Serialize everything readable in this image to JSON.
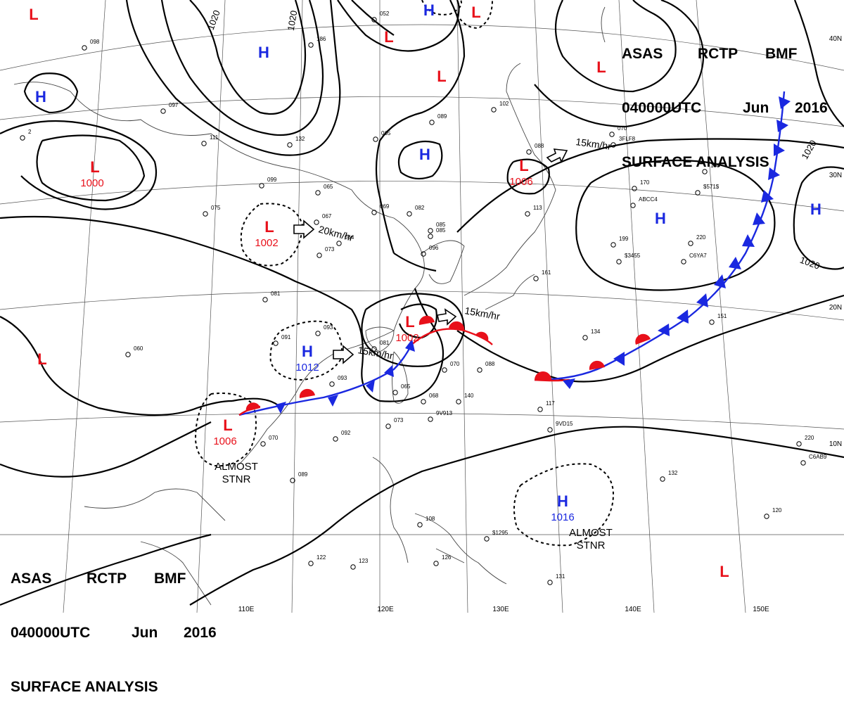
{
  "header": {
    "agency": "ASAS",
    "station": "RCTP",
    "code": "BMF",
    "time": "040000UTC",
    "month": "Jun",
    "year": "2016",
    "product": "SURFACE ANALYSIS"
  },
  "colors": {
    "low": "#e8101a",
    "high": "#1a28e0",
    "cold_front": "#1a28e0",
    "warm_front": "#e8101a",
    "isobar": "#000000",
    "grid": "#555555",
    "coast": "#444444"
  },
  "pressure_centers": [
    {
      "type": "L",
      "value": ""
    },
    {
      "type": "H",
      "value": ""
    },
    {
      "type": "H",
      "value": ""
    },
    {
      "type": "L",
      "value": "1000"
    },
    {
      "type": "L",
      "value": "1002"
    },
    {
      "type": "L",
      "value": "1002"
    },
    {
      "type": "H",
      "value": "1012"
    },
    {
      "type": "L",
      "value": "1006"
    },
    {
      "type": "H",
      "value": ""
    },
    {
      "type": "L",
      "value": ""
    },
    {
      "type": "L",
      "value": ""
    },
    {
      "type": "L",
      "value": ""
    },
    {
      "type": "L",
      "value": "1006"
    },
    {
      "type": "H",
      "value": ""
    },
    {
      "type": "H",
      "value": ""
    },
    {
      "type": "L",
      "value": ""
    },
    {
      "type": "H",
      "value": "1016"
    },
    {
      "type": "L",
      "value": ""
    },
    {
      "type": "H",
      "value": ""
    },
    {
      "type": "L",
      "value": ""
    }
  ],
  "isobar_labels": [
    "1020",
    "1020",
    "1020",
    "1020"
  ],
  "motion_vectors": [
    "20km/hr",
    "15km/hr",
    "15km/hr",
    "15km/hr"
  ],
  "annotations": [
    "ALMOST STNR",
    "ALMOST STNR"
  ],
  "lat_labels": [
    "40N",
    "30N",
    "20N",
    "10N"
  ],
  "lon_labels": [
    "110E",
    "120E",
    "130E",
    "140E",
    "150E"
  ],
  "station_plots": [
    "098",
    "186",
    "052",
    "089",
    "065",
    "111",
    "132",
    "097",
    "085",
    "102",
    "088",
    "070",
    "099",
    "065",
    "075",
    "067",
    "064",
    "073",
    "082",
    "069",
    "085",
    "096",
    "081",
    "091",
    "093",
    "081",
    "060",
    "093",
    "070",
    "088",
    "068",
    "140",
    "065",
    "073",
    "092",
    "070",
    "089",
    "122",
    "123",
    "108",
    "126",
    "131",
    "120",
    "117",
    "132",
    "134",
    "220",
    "220",
    "151",
    "161",
    "113",
    "180",
    "170",
    "199",
    "2",
    "3FLF8",
    "ABCC4",
    "$3455",
    "C6YA7",
    "$571$",
    "9V913",
    "9VD15",
    "$1295",
    "C6AB9"
  ]
}
